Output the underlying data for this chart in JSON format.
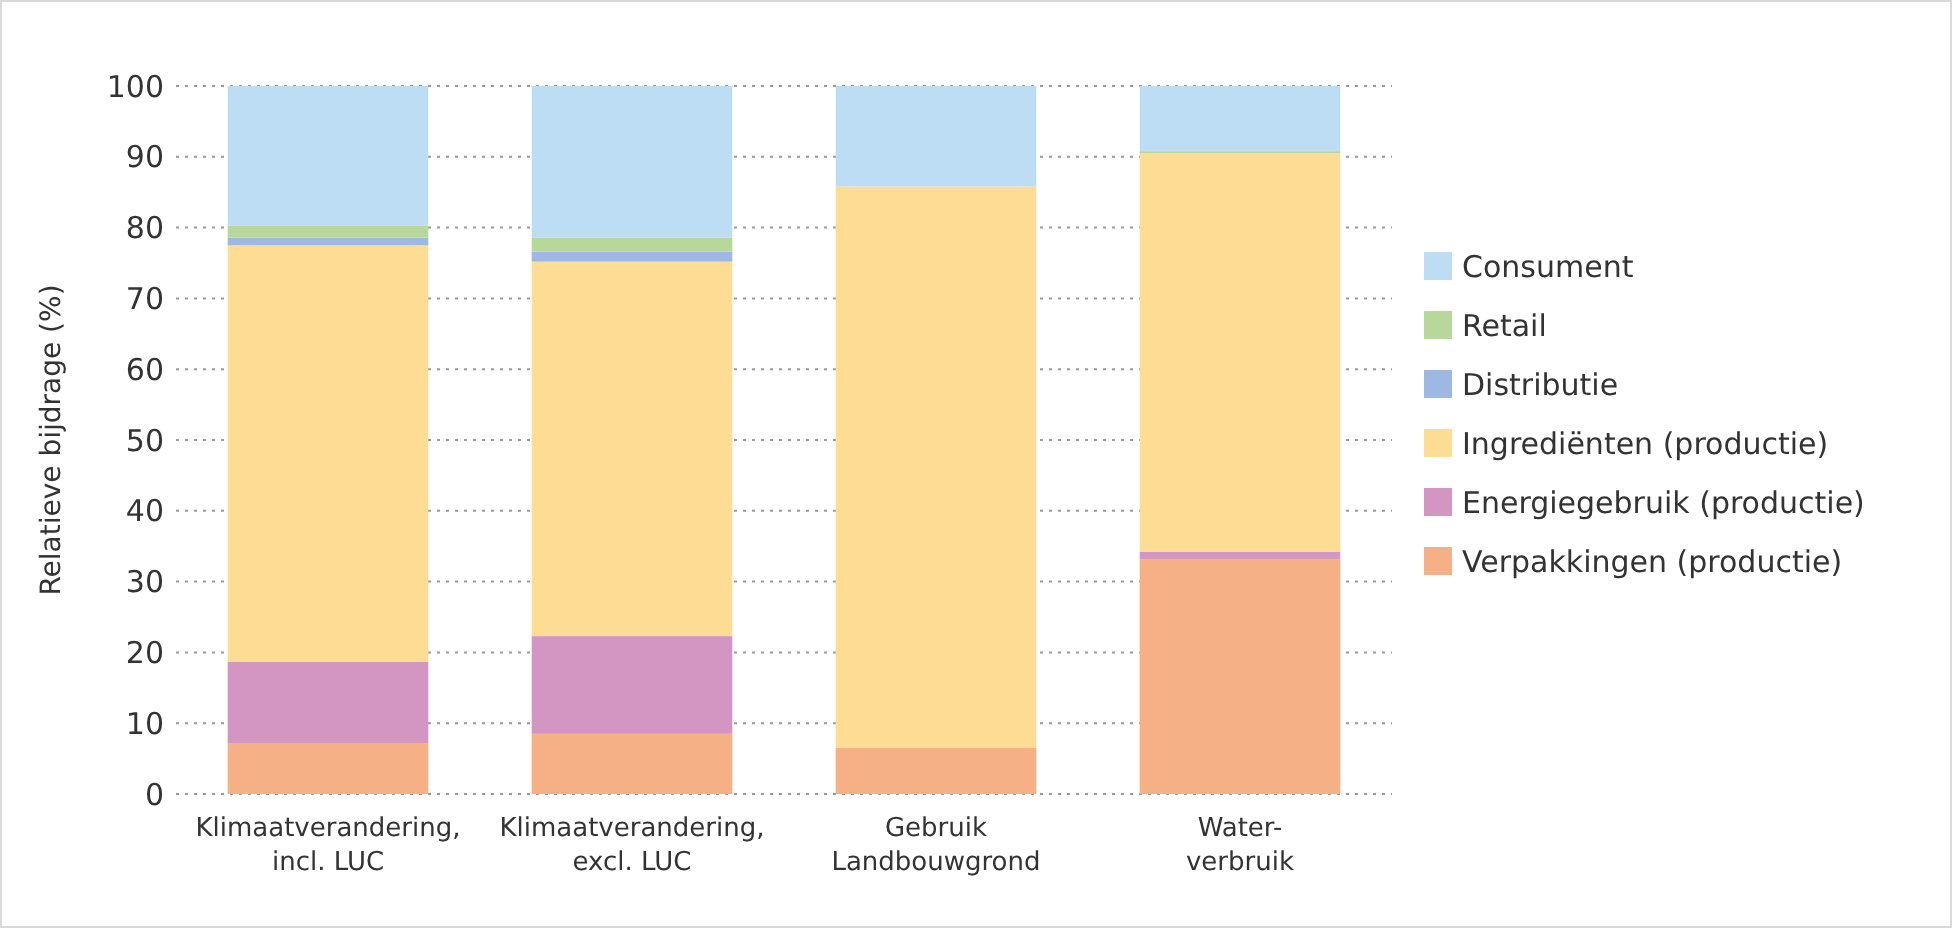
{
  "chart_data": {
    "type": "bar",
    "stacked": true,
    "ylabel": "Relatieve bijdrage (%)",
    "categories": [
      "Klimaatverandering,\nincl. LUC",
      "Klimaatverandering,\nexcl. LUC",
      "Gebruik\nLandbouwgrond",
      "Water-\nverbruik"
    ],
    "series": [
      {
        "name": "Verpakkingen (productie)",
        "color": "#f5b185",
        "values": [
          7.2,
          8.5,
          6.5,
          33.1
        ]
      },
      {
        "name": "Energiegebruik (productie)",
        "color": "#d396c3",
        "values": [
          11.5,
          13.8,
          0,
          1.1
        ]
      },
      {
        "name": "Ingrediënten (productie)",
        "color": "#fddc94",
        "values": [
          58.8,
          52.9,
          79.3,
          56.3
        ]
      },
      {
        "name": "Distributie",
        "color": "#9db8e2",
        "values": [
          1.1,
          1.4,
          0,
          0
        ]
      },
      {
        "name": "Retail",
        "color": "#b7d79b",
        "values": [
          1.7,
          2.0,
          0,
          0.3
        ]
      },
      {
        "name": "Consument",
        "color": "#bdddf4",
        "values": [
          19.7,
          21.4,
          14.2,
          9.2
        ]
      }
    ],
    "ylim": [
      0,
      100
    ],
    "yticks": [
      0,
      10,
      20,
      30,
      40,
      50,
      60,
      70,
      80,
      90,
      100
    ],
    "grid": "y",
    "legend": "right"
  }
}
